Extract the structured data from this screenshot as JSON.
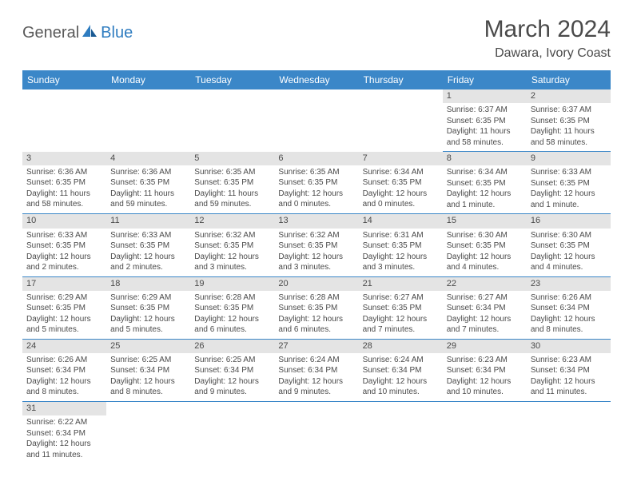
{
  "logo": {
    "text1": "General",
    "text2": "Blue"
  },
  "title": "March 2024",
  "location": "Dawara, Ivory Coast",
  "colors": {
    "header_bg": "#3b87c8",
    "header_text": "#ffffff",
    "daynum_bg": "#e4e4e4",
    "text": "#4a4a4a",
    "row_border": "#3b87c8",
    "page_bg": "#ffffff",
    "logo_gray": "#5a5a5a",
    "logo_blue": "#2e7cc0"
  },
  "dayHeaders": [
    "Sunday",
    "Monday",
    "Tuesday",
    "Wednesday",
    "Thursday",
    "Friday",
    "Saturday"
  ],
  "startOffset": 5,
  "days": [
    {
      "n": 1,
      "sunrise": "6:37 AM",
      "sunset": "6:35 PM",
      "daylight": "11 hours and 58 minutes."
    },
    {
      "n": 2,
      "sunrise": "6:37 AM",
      "sunset": "6:35 PM",
      "daylight": "11 hours and 58 minutes."
    },
    {
      "n": 3,
      "sunrise": "6:36 AM",
      "sunset": "6:35 PM",
      "daylight": "11 hours and 58 minutes."
    },
    {
      "n": 4,
      "sunrise": "6:36 AM",
      "sunset": "6:35 PM",
      "daylight": "11 hours and 59 minutes."
    },
    {
      "n": 5,
      "sunrise": "6:35 AM",
      "sunset": "6:35 PM",
      "daylight": "11 hours and 59 minutes."
    },
    {
      "n": 6,
      "sunrise": "6:35 AM",
      "sunset": "6:35 PM",
      "daylight": "12 hours and 0 minutes."
    },
    {
      "n": 7,
      "sunrise": "6:34 AM",
      "sunset": "6:35 PM",
      "daylight": "12 hours and 0 minutes."
    },
    {
      "n": 8,
      "sunrise": "6:34 AM",
      "sunset": "6:35 PM",
      "daylight": "12 hours and 1 minute."
    },
    {
      "n": 9,
      "sunrise": "6:33 AM",
      "sunset": "6:35 PM",
      "daylight": "12 hours and 1 minute."
    },
    {
      "n": 10,
      "sunrise": "6:33 AM",
      "sunset": "6:35 PM",
      "daylight": "12 hours and 2 minutes."
    },
    {
      "n": 11,
      "sunrise": "6:33 AM",
      "sunset": "6:35 PM",
      "daylight": "12 hours and 2 minutes."
    },
    {
      "n": 12,
      "sunrise": "6:32 AM",
      "sunset": "6:35 PM",
      "daylight": "12 hours and 3 minutes."
    },
    {
      "n": 13,
      "sunrise": "6:32 AM",
      "sunset": "6:35 PM",
      "daylight": "12 hours and 3 minutes."
    },
    {
      "n": 14,
      "sunrise": "6:31 AM",
      "sunset": "6:35 PM",
      "daylight": "12 hours and 3 minutes."
    },
    {
      "n": 15,
      "sunrise": "6:30 AM",
      "sunset": "6:35 PM",
      "daylight": "12 hours and 4 minutes."
    },
    {
      "n": 16,
      "sunrise": "6:30 AM",
      "sunset": "6:35 PM",
      "daylight": "12 hours and 4 minutes."
    },
    {
      "n": 17,
      "sunrise": "6:29 AM",
      "sunset": "6:35 PM",
      "daylight": "12 hours and 5 minutes."
    },
    {
      "n": 18,
      "sunrise": "6:29 AM",
      "sunset": "6:35 PM",
      "daylight": "12 hours and 5 minutes."
    },
    {
      "n": 19,
      "sunrise": "6:28 AM",
      "sunset": "6:35 PM",
      "daylight": "12 hours and 6 minutes."
    },
    {
      "n": 20,
      "sunrise": "6:28 AM",
      "sunset": "6:35 PM",
      "daylight": "12 hours and 6 minutes."
    },
    {
      "n": 21,
      "sunrise": "6:27 AM",
      "sunset": "6:35 PM",
      "daylight": "12 hours and 7 minutes."
    },
    {
      "n": 22,
      "sunrise": "6:27 AM",
      "sunset": "6:34 PM",
      "daylight": "12 hours and 7 minutes."
    },
    {
      "n": 23,
      "sunrise": "6:26 AM",
      "sunset": "6:34 PM",
      "daylight": "12 hours and 8 minutes."
    },
    {
      "n": 24,
      "sunrise": "6:26 AM",
      "sunset": "6:34 PM",
      "daylight": "12 hours and 8 minutes."
    },
    {
      "n": 25,
      "sunrise": "6:25 AM",
      "sunset": "6:34 PM",
      "daylight": "12 hours and 8 minutes."
    },
    {
      "n": 26,
      "sunrise": "6:25 AM",
      "sunset": "6:34 PM",
      "daylight": "12 hours and 9 minutes."
    },
    {
      "n": 27,
      "sunrise": "6:24 AM",
      "sunset": "6:34 PM",
      "daylight": "12 hours and 9 minutes."
    },
    {
      "n": 28,
      "sunrise": "6:24 AM",
      "sunset": "6:34 PM",
      "daylight": "12 hours and 10 minutes."
    },
    {
      "n": 29,
      "sunrise": "6:23 AM",
      "sunset": "6:34 PM",
      "daylight": "12 hours and 10 minutes."
    },
    {
      "n": 30,
      "sunrise": "6:23 AM",
      "sunset": "6:34 PM",
      "daylight": "12 hours and 11 minutes."
    },
    {
      "n": 31,
      "sunrise": "6:22 AM",
      "sunset": "6:34 PM",
      "daylight": "12 hours and 11 minutes."
    }
  ],
  "labels": {
    "sunrise": "Sunrise:",
    "sunset": "Sunset:",
    "daylight": "Daylight:"
  }
}
